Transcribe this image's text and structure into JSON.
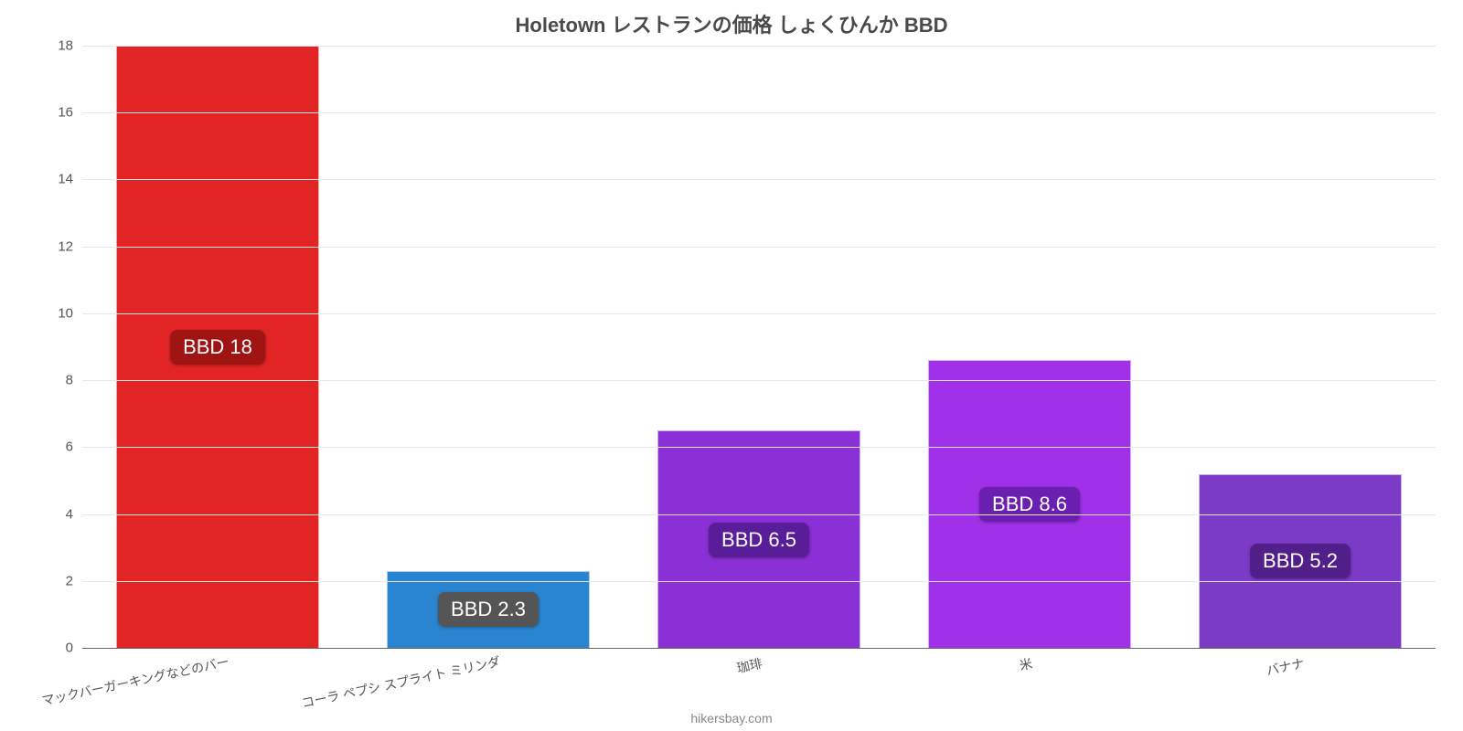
{
  "chart": {
    "type": "bar",
    "title": "Holetown レストランの価格 しょくひんか BBD",
    "title_fontsize": 22,
    "title_color": "#4a4a4a",
    "background_color": "#ffffff",
    "grid_color": "#e6e6e6",
    "axis_color": "#666666",
    "tick_label_color": "#555555",
    "ylim": [
      0,
      18
    ],
    "ytick_step": 2,
    "y_tick_fontsize": 15,
    "x_tick_fontsize": 14,
    "x_label_rotation_deg": -12,
    "bar_width_pct": 75,
    "categories": [
      "マックバーガーキングなどのバー",
      "コーラ ペプシ スプライト ミリンダ",
      "珈琲",
      "米",
      "バナナ"
    ],
    "values": [
      18,
      2.3,
      6.5,
      8.6,
      5.2
    ],
    "value_labels": [
      "BBD 18",
      "BBD 2.3",
      "BBD 6.5",
      "BBD 8.6",
      "BBD 5.2"
    ],
    "bar_colors": [
      "#e32424",
      "#2a85d0",
      "#8b2fd6",
      "#a031e8",
      "#7b3bc7"
    ],
    "badge_colors": [
      "#a11414",
      "#555555",
      "#5a1d9a",
      "#6b1fb0",
      "#521f8a"
    ],
    "badge_fontsize": 22,
    "badge_text_color": "#ffffff",
    "credit": "hikersbay.com",
    "credit_color": "#888888",
    "credit_fontsize": 14
  }
}
